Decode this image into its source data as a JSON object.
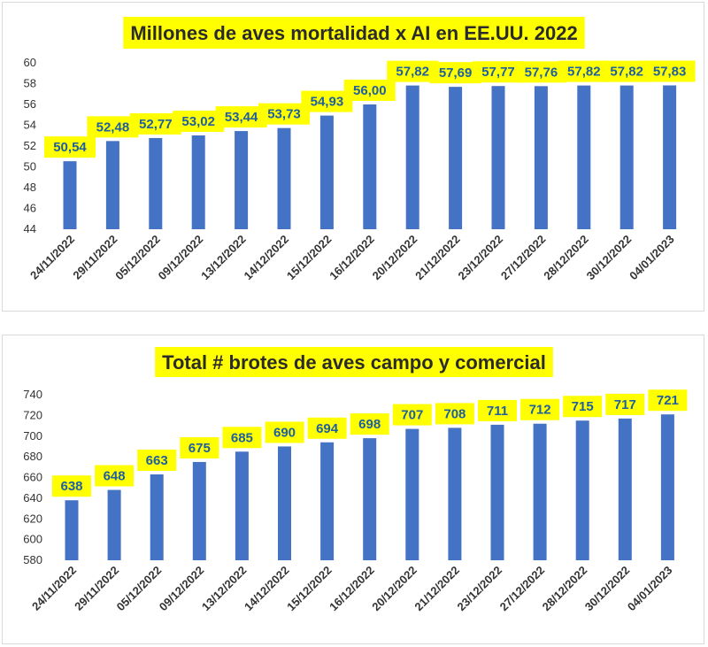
{
  "chart_data": [
    {
      "type": "bar",
      "title": "Millones de aves mortalidad x AI en EE.UU. 2022",
      "categories": [
        "24/11/2022",
        "29/11/2022",
        "05/12/2022",
        "09/12/2022",
        "13/12/2022",
        "14/12/2022",
        "15/12/2022",
        "16/12/2022",
        "20/12/2022",
        "21/12/2022",
        "23/12/2022",
        "27/12/2022",
        "28/12/2022",
        "30/12/2022",
        "04/01/2023"
      ],
      "values": [
        50.54,
        52.48,
        52.77,
        53.02,
        53.44,
        53.73,
        54.93,
        56.0,
        57.82,
        57.69,
        57.77,
        57.76,
        57.82,
        57.82,
        57.83
      ],
      "value_labels": [
        "50,54",
        "52,48",
        "52,77",
        "53,02",
        "53,44",
        "53,73",
        "54,93",
        "56,00",
        "57,82",
        "57,69",
        "57,77",
        "57,76",
        "57,82",
        "57,82",
        "57,83"
      ],
      "yticks": [
        "44",
        "46",
        "48",
        "50",
        "52",
        "54",
        "56",
        "58",
        "60"
      ],
      "ylim": [
        44,
        60
      ],
      "xlabel": "",
      "ylabel": "",
      "grid": false,
      "legend": "none"
    },
    {
      "type": "bar",
      "title": "Total # brotes de aves campo y comercial",
      "categories": [
        "24/11/2022",
        "29/11/2022",
        "05/12/2022",
        "09/12/2022",
        "13/12/2022",
        "14/12/2022",
        "15/12/2022",
        "16/12/2022",
        "20/12/2022",
        "21/12/2022",
        "23/12/2022",
        "27/12/2022",
        "28/12/2022",
        "30/12/2022",
        "04/01/2023"
      ],
      "values": [
        638,
        648,
        663,
        675,
        685,
        690,
        694,
        698,
        707,
        708,
        711,
        712,
        715,
        717,
        721
      ],
      "value_labels": [
        "638",
        "648",
        "663",
        "675",
        "685",
        "690",
        "694",
        "698",
        "707",
        "708",
        "711",
        "712",
        "715",
        "717",
        "721"
      ],
      "yticks": [
        "580",
        "600",
        "620",
        "640",
        "660",
        "680",
        "700",
        "720",
        "740"
      ],
      "ylim": [
        580,
        740
      ],
      "xlabel": "",
      "ylabel": "",
      "grid": false,
      "legend": "none"
    }
  ],
  "colors": {
    "bar": "#4472c4",
    "label_background": "#ffff00",
    "label_text": "#1f5fa0",
    "title_background": "#ffff00",
    "title_text": "#2b2b2b"
  }
}
